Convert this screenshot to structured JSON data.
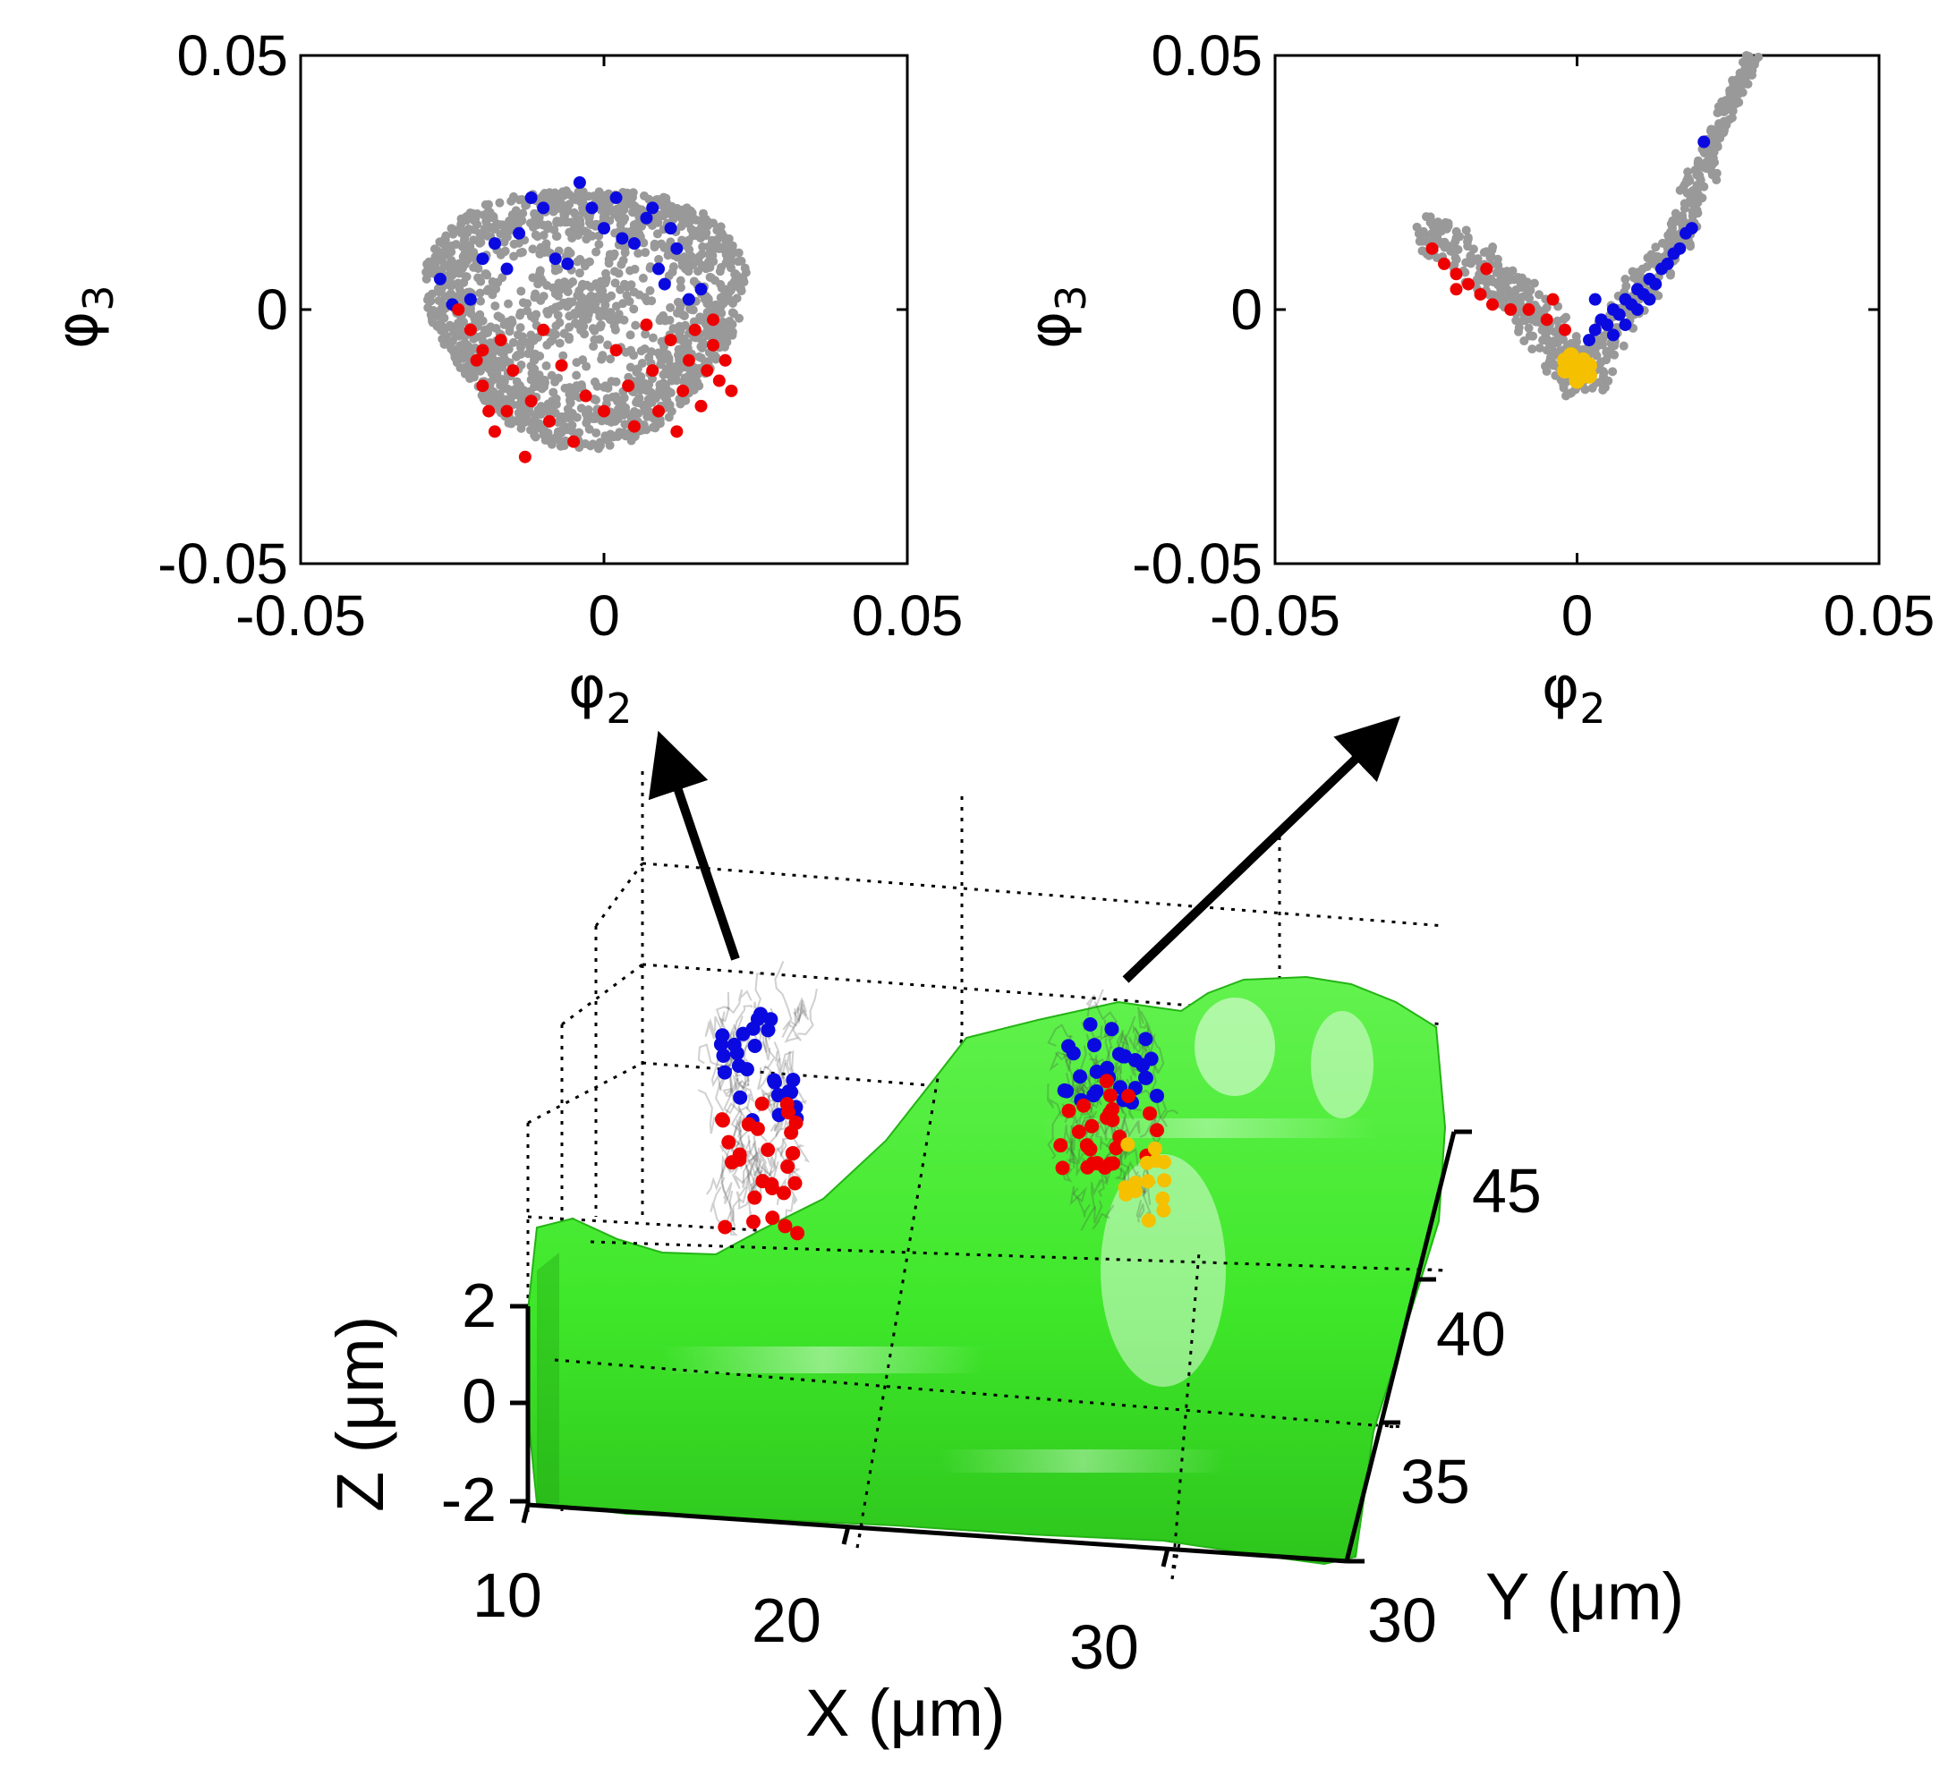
{
  "chart_data": [
    {
      "type": "scatter",
      "panel": "top-left",
      "xlabel": "φ",
      "xlabel_sub": "2",
      "ylabel": "φ",
      "ylabel_sub": "3",
      "xlim": [
        -0.05,
        0.05
      ],
      "ylim": [
        -0.05,
        0.05
      ],
      "x_ticks": [
        -0.05,
        0,
        0.05
      ],
      "x_tick_labels": [
        "-0.05",
        "0",
        "0.05"
      ],
      "y_ticks": [
        -0.05,
        0,
        0.05
      ],
      "y_tick_labels": [
        "-0.05",
        "0",
        "0.05"
      ],
      "series": [
        {
          "name": "gray",
          "color": "#999999",
          "shape": "ring",
          "center": [
            -0.003,
            0.0
          ],
          "outer_radius": 0.026,
          "inner_radius": 0.012,
          "count": 1400
        },
        {
          "name": "blue",
          "color": "#0a0ae0",
          "points": [
            [
              -0.027,
              0.006
            ],
            [
              -0.025,
              0.001
            ],
            [
              -0.022,
              0.002
            ],
            [
              -0.018,
              0.013
            ],
            [
              -0.016,
              0.008
            ],
            [
              -0.012,
              0.022
            ],
            [
              -0.01,
              0.02
            ],
            [
              -0.008,
              0.01
            ],
            [
              -0.004,
              0.025
            ],
            [
              -0.002,
              0.02
            ],
            [
              0.0,
              0.016
            ],
            [
              0.003,
              0.014
            ],
            [
              0.005,
              0.013
            ],
            [
              0.007,
              0.018
            ],
            [
              0.008,
              0.02
            ],
            [
              0.009,
              0.008
            ],
            [
              0.01,
              0.005
            ],
            [
              0.012,
              0.012
            ],
            [
              0.014,
              0.002
            ],
            [
              0.016,
              0.004
            ],
            [
              -0.014,
              0.015
            ],
            [
              -0.006,
              0.009
            ],
            [
              -0.02,
              0.01
            ],
            [
              0.002,
              0.022
            ],
            [
              0.011,
              0.016
            ]
          ]
        },
        {
          "name": "red",
          "color": "#ee0000",
          "points": [
            [
              -0.024,
              0.0
            ],
            [
              -0.022,
              -0.004
            ],
            [
              -0.021,
              -0.01
            ],
            [
              -0.02,
              -0.015
            ],
            [
              -0.019,
              -0.02
            ],
            [
              -0.018,
              -0.024
            ],
            [
              -0.017,
              -0.006
            ],
            [
              -0.015,
              -0.012
            ],
            [
              -0.013,
              -0.029
            ],
            [
              -0.012,
              -0.018
            ],
            [
              -0.01,
              -0.004
            ],
            [
              -0.009,
              -0.022
            ],
            [
              -0.007,
              -0.011
            ],
            [
              -0.005,
              -0.026
            ],
            [
              -0.003,
              -0.017
            ],
            [
              0.0,
              -0.02
            ],
            [
              0.002,
              -0.008
            ],
            [
              0.004,
              -0.015
            ],
            [
              0.005,
              -0.023
            ],
            [
              0.007,
              -0.003
            ],
            [
              0.008,
              -0.012
            ],
            [
              0.009,
              -0.02
            ],
            [
              0.011,
              -0.006
            ],
            [
              0.013,
              -0.016
            ],
            [
              0.014,
              -0.01
            ],
            [
              0.015,
              -0.004
            ],
            [
              0.016,
              -0.019
            ],
            [
              0.017,
              -0.012
            ],
            [
              0.018,
              -0.007
            ],
            [
              0.019,
              -0.014
            ],
            [
              0.02,
              -0.01
            ],
            [
              0.021,
              -0.016
            ],
            [
              0.012,
              -0.024
            ],
            [
              -0.016,
              -0.02
            ],
            [
              -0.02,
              -0.008
            ],
            [
              0.018,
              -0.002
            ]
          ]
        }
      ]
    },
    {
      "type": "scatter",
      "panel": "top-right",
      "xlabel": "φ",
      "xlabel_sub": "2",
      "ylabel": "φ",
      "ylabel_sub": "3",
      "xlim": [
        -0.05,
        0.05
      ],
      "ylim": [
        -0.05,
        0.05
      ],
      "x_ticks": [
        -0.05,
        0,
        0.05
      ],
      "x_tick_labels": [
        "-0.05",
        "0",
        "0.05"
      ],
      "y_ticks": [
        -0.05,
        0,
        0.05
      ],
      "y_tick_labels": [
        "-0.05",
        "0",
        "0.05"
      ],
      "series": [
        {
          "name": "gray",
          "color": "#999999",
          "shape": "v-curve",
          "path": [
            [
              -0.025,
              0.016
            ],
            [
              -0.016,
              0.009
            ],
            [
              -0.008,
              0.0
            ],
            [
              -0.002,
              -0.009
            ],
            [
              0.0,
              -0.014
            ],
            [
              0.004,
              -0.008
            ],
            [
              0.01,
              0.003
            ],
            [
              0.017,
              0.014
            ],
            [
              0.021,
              0.028
            ],
            [
              0.025,
              0.04
            ],
            [
              0.029,
              0.049
            ]
          ],
          "count": 700
        },
        {
          "name": "blue",
          "color": "#0a0ae0",
          "points": [
            [
              0.002,
              -0.006
            ],
            [
              0.003,
              -0.004
            ],
            [
              0.004,
              -0.002
            ],
            [
              0.005,
              -0.003
            ],
            [
              0.006,
              0.0
            ],
            [
              0.007,
              -0.001
            ],
            [
              0.008,
              0.002
            ],
            [
              0.009,
              0.001
            ],
            [
              0.01,
              0.004
            ],
            [
              0.011,
              0.003
            ],
            [
              0.012,
              0.006
            ],
            [
              0.013,
              0.005
            ],
            [
              0.014,
              0.008
            ],
            [
              0.015,
              0.009
            ],
            [
              0.016,
              0.011
            ],
            [
              0.017,
              0.012
            ],
            [
              0.018,
              0.015
            ],
            [
              0.019,
              0.016
            ],
            [
              0.021,
              0.033
            ],
            [
              0.006,
              -0.005
            ],
            [
              0.008,
              -0.003
            ],
            [
              0.01,
              0.0
            ],
            [
              0.012,
              0.002
            ],
            [
              0.003,
              0.002
            ]
          ]
        },
        {
          "name": "red",
          "color": "#ee0000",
          "points": [
            [
              -0.024,
              0.012
            ],
            [
              -0.022,
              0.009
            ],
            [
              -0.02,
              0.007
            ],
            [
              -0.018,
              0.005
            ],
            [
              -0.016,
              0.003
            ],
            [
              -0.014,
              0.001
            ],
            [
              -0.011,
              0.0
            ],
            [
              -0.008,
              0.0
            ],
            [
              -0.005,
              -0.002
            ],
            [
              -0.004,
              0.002
            ],
            [
              -0.002,
              -0.004
            ],
            [
              -0.02,
              0.004
            ],
            [
              -0.015,
              0.008
            ]
          ]
        },
        {
          "name": "yellow",
          "color": "#f5c000",
          "points": [
            [
              -0.002,
              -0.01
            ],
            [
              -0.001,
              -0.012
            ],
            [
              0.0,
              -0.011
            ],
            [
              0.001,
              -0.013
            ],
            [
              0.002,
              -0.011
            ],
            [
              0.0,
              -0.014
            ],
            [
              -0.001,
              -0.009
            ],
            [
              0.001,
              -0.01
            ],
            [
              0.002,
              -0.013
            ],
            [
              -0.002,
              -0.012
            ]
          ]
        }
      ]
    },
    {
      "type": "surface3d",
      "panel": "bottom",
      "xlabel": "X (μm)",
      "ylabel": "Y (μm)",
      "zlabel": "Z (μm)",
      "x_tick_labels": [
        "10",
        "20",
        "30"
      ],
      "y_tick_labels": [
        "30",
        "35",
        "40",
        "45"
      ],
      "z_tick_labels": [
        "-2",
        "0",
        "2"
      ],
      "surface_color": "#2ee81c",
      "clusters": [
        {
          "name": "left-trajectory-cluster",
          "series": [
            "blue",
            "red"
          ]
        },
        {
          "name": "right-trajectory-cluster",
          "series": [
            "blue",
            "red",
            "yellow"
          ]
        }
      ]
    }
  ]
}
